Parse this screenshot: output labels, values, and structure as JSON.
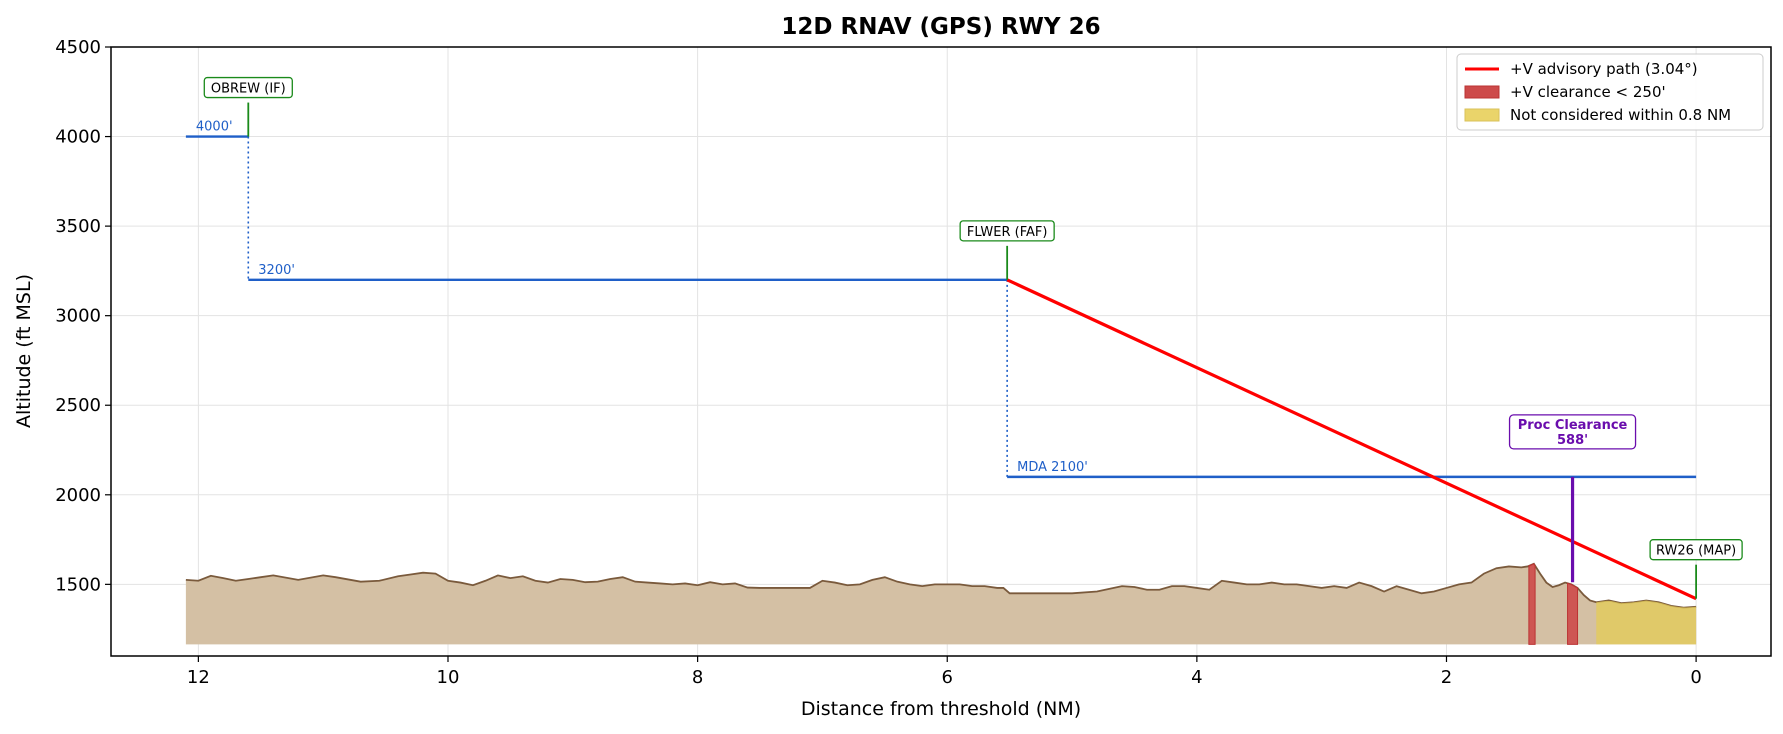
{
  "chart_data": {
    "type": "line",
    "title": "12D  RNAV (GPS) RWY 26",
    "xlabel": "Distance from threshold (NM)",
    "ylabel": "Altitude (ft MSL)",
    "xlim": [
      12.7,
      -0.6
    ],
    "ylim": [
      1100,
      4500
    ],
    "x_reversed": true,
    "x_ticks": [
      12,
      10,
      8,
      6,
      4,
      2,
      0
    ],
    "y_ticks": [
      1500,
      2000,
      2500,
      3000,
      3500,
      4000,
      4500
    ],
    "grid": true,
    "legend_position": "top-right",
    "legend": [
      {
        "label": "+V advisory path (3.04°)",
        "kind": "line",
        "color": "#ff0000"
      },
      {
        "label": "+V clearance < 250'",
        "kind": "patch",
        "color": "#cd4a4a"
      },
      {
        "label": "Not considered within 0.8 NM",
        "kind": "patch",
        "color": "#ead46a"
      }
    ],
    "procedure_segments": [
      {
        "from_nm": 12.1,
        "to_nm": 11.6,
        "altitude_ft": 4000,
        "label": "4000'"
      },
      {
        "from_nm": 11.6,
        "to_nm": 5.52,
        "altitude_ft": 3200,
        "label": "3200'"
      },
      {
        "from_nm": 5.52,
        "to_nm": 0.0,
        "altitude_ft": 2100,
        "label": "MDA 2100'"
      }
    ],
    "step_downs": [
      {
        "at_nm": 11.6,
        "from_ft": 4000,
        "to_ft": 3200
      },
      {
        "at_nm": 5.52,
        "from_ft": 3200,
        "to_ft": 2100
      }
    ],
    "advisory_path": {
      "x": [
        5.52,
        0.0
      ],
      "y": [
        3200,
        1420
      ],
      "color": "#ff0000"
    },
    "fixes": [
      {
        "name": "OBREW (IF)",
        "x_nm": 11.6,
        "altitude_ft": 4000
      },
      {
        "name": "FLWER (FAF)",
        "x_nm": 5.52,
        "altitude_ft": 3200
      },
      {
        "name": "RW26 (MAP)",
        "x_nm": 0.0,
        "altitude_ft": 1420
      }
    ],
    "proc_clearance": {
      "label": "Proc Clearance",
      "value": "588'",
      "x_nm": 0.99,
      "top_ft": 2100,
      "bottom_ft": 1512
    },
    "clearance_violations": [
      {
        "from_nm": 1.34,
        "to_nm": 1.29
      },
      {
        "from_nm": 1.03,
        "to_nm": 0.95
      }
    ],
    "not_considered_zone": {
      "from_nm": 0.8,
      "to_nm": 0.0
    },
    "terrain": {
      "base_ft": 1165,
      "x": [
        12.1,
        12.0,
        11.9,
        11.8,
        11.7,
        11.6,
        11.5,
        11.4,
        11.2,
        11.0,
        10.9,
        10.7,
        10.55,
        10.4,
        10.3,
        10.2,
        10.1,
        10.0,
        9.9,
        9.8,
        9.7,
        9.6,
        9.5,
        9.4,
        9.3,
        9.2,
        9.1,
        9.0,
        8.9,
        8.8,
        8.7,
        8.6,
        8.5,
        8.4,
        8.3,
        8.2,
        8.1,
        8.0,
        7.9,
        7.8,
        7.7,
        7.6,
        7.5,
        7.4,
        7.3,
        7.2,
        7.1,
        7.0,
        6.9,
        6.8,
        6.7,
        6.6,
        6.5,
        6.4,
        6.3,
        6.2,
        6.1,
        6.0,
        5.9,
        5.8,
        5.7,
        5.6,
        5.55,
        5.5,
        5.4,
        5.2,
        5.0,
        4.8,
        4.6,
        4.5,
        4.4,
        4.3,
        4.2,
        4.1,
        4.0,
        3.9,
        3.8,
        3.7,
        3.6,
        3.5,
        3.4,
        3.3,
        3.2,
        3.1,
        3.0,
        2.9,
        2.8,
        2.7,
        2.6,
        2.5,
        2.4,
        2.3,
        2.2,
        2.1,
        2.0,
        1.9,
        1.8,
        1.7,
        1.6,
        1.5,
        1.4,
        1.35,
        1.3,
        1.25,
        1.2,
        1.15,
        1.1,
        1.05,
        1.0,
        0.95,
        0.9,
        0.85,
        0.8,
        0.7,
        0.6,
        0.5,
        0.4,
        0.3,
        0.2,
        0.1,
        0.0
      ],
      "y": [
        1525,
        1520,
        1548,
        1535,
        1520,
        1530,
        1540,
        1550,
        1525,
        1550,
        1540,
        1515,
        1520,
        1545,
        1555,
        1565,
        1560,
        1520,
        1510,
        1495,
        1520,
        1550,
        1535,
        1545,
        1520,
        1510,
        1530,
        1525,
        1512,
        1515,
        1530,
        1540,
        1515,
        1510,
        1505,
        1500,
        1505,
        1495,
        1512,
        1500,
        1505,
        1482,
        1480,
        1480,
        1480,
        1480,
        1480,
        1520,
        1510,
        1495,
        1500,
        1525,
        1540,
        1515,
        1500,
        1490,
        1500,
        1500,
        1500,
        1490,
        1490,
        1480,
        1480,
        1450,
        1450,
        1450,
        1450,
        1460,
        1490,
        1485,
        1470,
        1470,
        1490,
        1490,
        1480,
        1470,
        1520,
        1510,
        1500,
        1500,
        1510,
        1500,
        1500,
        1490,
        1480,
        1490,
        1480,
        1510,
        1490,
        1460,
        1490,
        1470,
        1450,
        1460,
        1480,
        1500,
        1510,
        1560,
        1590,
        1600,
        1595,
        1600,
        1615,
        1560,
        1510,
        1485,
        1495,
        1510,
        1500,
        1480,
        1440,
        1410,
        1400,
        1410,
        1395,
        1400,
        1410,
        1400,
        1380,
        1370,
        1375
      ]
    }
  }
}
